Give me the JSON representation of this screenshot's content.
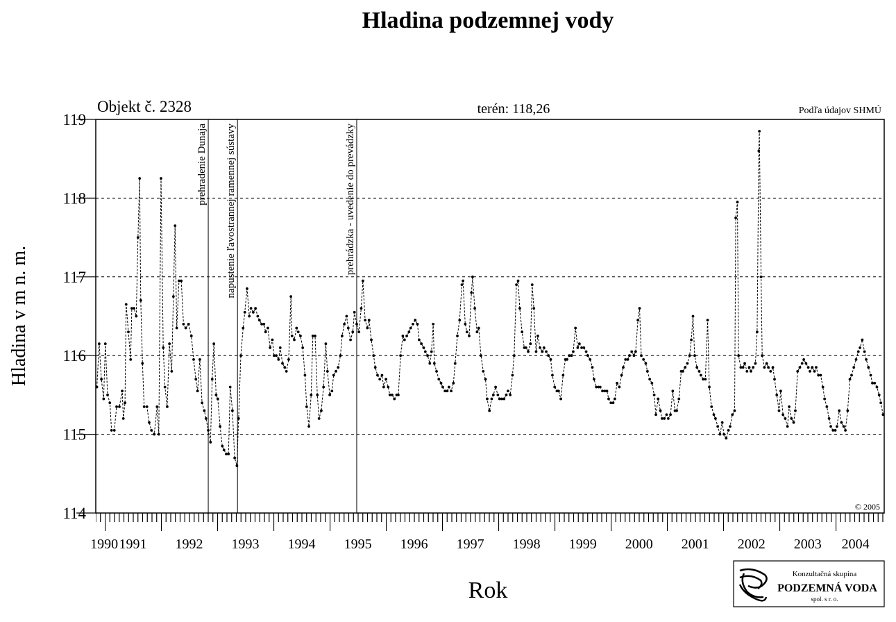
{
  "chart_data": {
    "type": "line",
    "title": "Hladina podzemnej vody",
    "object_label": "Objekt č. 2328",
    "terrain_label": "terén: 118,26",
    "source_label": "Podľa údajov SHMÚ",
    "copyright": "© 2005",
    "ylabel": "Hladina v m n. m.",
    "xlabel": "Rok",
    "logo": {
      "line1": "Konzultačná skupina",
      "line2": "PODZEMNÁ VODA",
      "line3": "spol. s r. o."
    },
    "xlim": [
      1990.84,
      2004.86
    ],
    "ylim": [
      114,
      119
    ],
    "yticks": [
      114,
      115,
      116,
      117,
      118,
      119
    ],
    "xticks": [
      {
        "value": 1990.99,
        "label": "1990"
      },
      {
        "value": 1991.5,
        "label": "1991"
      },
      {
        "value": 1992.5,
        "label": "1992"
      },
      {
        "value": 1993.5,
        "label": "1993"
      },
      {
        "value": 1994.5,
        "label": "1994"
      },
      {
        "value": 1995.5,
        "label": "1995"
      },
      {
        "value": 1996.5,
        "label": "1996"
      },
      {
        "value": 1997.5,
        "label": "1997"
      },
      {
        "value": 1998.5,
        "label": "1998"
      },
      {
        "value": 1999.5,
        "label": "1999"
      },
      {
        "value": 2000.5,
        "label": "2000"
      },
      {
        "value": 2001.5,
        "label": "2001"
      },
      {
        "value": 2002.5,
        "label": "2002"
      },
      {
        "value": 2003.5,
        "label": "2003"
      },
      {
        "value": 2004.35,
        "label": "2004"
      }
    ],
    "grid": true,
    "events": [
      {
        "x": 1992.84,
        "label": "prehradenie Dunaja"
      },
      {
        "x": 1993.36,
        "label": "napustenie ľavostrannej ramennej sústavy"
      },
      {
        "x": 1995.48,
        "label": "prehrádzka - uvedenie do prevádzky"
      }
    ],
    "series": [
      {
        "color": "#000000",
        "x": [
          1990.86,
          1990.9,
          1990.94,
          1990.98,
          1991.01,
          1991.05,
          1991.09,
          1991.12,
          1991.17,
          1991.21,
          1991.26,
          1991.31,
          1991.33,
          1991.36,
          1991.38,
          1991.42,
          1991.46,
          1991.48,
          1991.52,
          1991.56,
          1991.59,
          1991.62,
          1991.64,
          1991.67,
          1991.7,
          1991.75,
          1991.79,
          1991.83,
          1991.88,
          1991.93,
          1991.96,
          1992.0,
          1992.04,
          1992.07,
          1992.11,
          1992.15,
          1992.19,
          1992.22,
          1992.25,
          1992.28,
          1992.32,
          1992.36,
          1992.4,
          1992.44,
          1992.49,
          1992.54,
          1992.58,
          1992.62,
          1992.65,
          1992.69,
          1992.73,
          1992.77,
          1992.8,
          1992.84,
          1992.88,
          1992.91,
          1992.94,
          1992.98,
          1993.01,
          1993.05,
          1993.09,
          1993.12,
          1993.16,
          1993.2,
          1993.23,
          1993.27,
          1993.31,
          1993.35,
          1993.38,
          1993.42,
          1993.46,
          1993.49,
          1993.53,
          1993.57,
          1993.6,
          1993.64,
          1993.68,
          1993.72,
          1993.75,
          1993.79,
          1993.83,
          1993.86,
          1993.9,
          1993.94,
          1993.98,
          1994.01,
          1994.05,
          1994.09,
          1994.12,
          1994.16,
          1994.2,
          1994.23,
          1994.27,
          1994.31,
          1994.33,
          1994.37,
          1994.41,
          1994.44,
          1994.48,
          1994.52,
          1994.56,
          1994.59,
          1994.63,
          1994.67,
          1994.7,
          1994.74,
          1994.78,
          1994.81,
          1994.85,
          1994.89,
          1994.93,
          1994.96,
          1995.0,
          1995.04,
          1995.07,
          1995.11,
          1995.15,
          1995.19,
          1995.22,
          1995.26,
          1995.3,
          1995.33,
          1995.37,
          1995.41,
          1995.44,
          1995.48,
          1995.52,
          1995.56,
          1995.59,
          1995.63,
          1995.67,
          1995.7,
          1995.74,
          1995.78,
          1995.81,
          1995.85,
          1995.89,
          1995.93,
          1995.96,
          1996.0,
          1996.04,
          1996.07,
          1996.11,
          1996.15,
          1996.19,
          1996.22,
          1996.26,
          1996.3,
          1996.33,
          1996.37,
          1996.41,
          1996.44,
          1996.48,
          1996.52,
          1996.56,
          1996.59,
          1996.63,
          1996.67,
          1996.7,
          1996.74,
          1996.78,
          1996.81,
          1996.84,
          1996.86,
          1996.9,
          1996.94,
          1996.98,
          1997.01,
          1997.05,
          1997.09,
          1997.12,
          1997.16,
          1997.2,
          1997.23,
          1997.27,
          1997.31,
          1997.35,
          1997.37,
          1997.41,
          1997.44,
          1997.48,
          1997.52,
          1997.54,
          1997.58,
          1997.62,
          1997.65,
          1997.69,
          1997.73,
          1997.77,
          1997.8,
          1997.84,
          1997.88,
          1997.91,
          1997.95,
          1997.99,
          1998.02,
          1998.06,
          1998.1,
          1998.14,
          1998.17,
          1998.21,
          1998.25,
          1998.28,
          1998.32,
          1998.35,
          1998.38,
          1998.42,
          1998.46,
          1998.49,
          1998.53,
          1998.57,
          1998.6,
          1998.63,
          1998.67,
          1998.7,
          1998.74,
          1998.78,
          1998.81,
          1998.85,
          1998.89,
          1998.93,
          1998.96,
          1999.0,
          1999.04,
          1999.07,
          1999.11,
          1999.15,
          1999.19,
          1999.22,
          1999.26,
          1999.3,
          1999.33,
          1999.37,
          1999.41,
          1999.44,
          1999.48,
          1999.52,
          1999.56,
          1999.59,
          1999.63,
          1999.67,
          1999.7,
          1999.74,
          1999.78,
          1999.81,
          1999.85,
          1999.89,
          1999.93,
          1999.96,
          2000.0,
          2000.04,
          2000.07,
          2000.11,
          2000.15,
          2000.19,
          2000.22,
          2000.26,
          2000.3,
          2000.33,
          2000.37,
          2000.41,
          2000.44,
          2000.48,
          2000.51,
          2000.54,
          2000.58,
          2000.62,
          2000.65,
          2000.69,
          2000.73,
          2000.77,
          2000.8,
          2000.84,
          2000.88,
          2000.91,
          2000.95,
          2000.99,
          2001.02,
          2001.06,
          2001.1,
          2001.14,
          2001.17,
          2001.21,
          2001.25,
          2001.28,
          2001.32,
          2001.36,
          2001.4,
          2001.43,
          2001.46,
          2001.49,
          2001.53,
          2001.57,
          2001.6,
          2001.64,
          2001.68,
          2001.72,
          2001.75,
          2001.79,
          2001.83,
          2001.86,
          2001.9,
          2001.94,
          2001.98,
          2002.01,
          2002.05,
          2002.09,
          2002.12,
          2002.16,
          2002.2,
          2002.22,
          2002.25,
          2002.27,
          2002.31,
          2002.35,
          2002.38,
          2002.42,
          2002.46,
          2002.49,
          2002.53,
          2002.57,
          2002.6,
          2002.63,
          2002.64,
          2002.67,
          2002.69,
          2002.73,
          2002.77,
          2002.8,
          2002.84,
          2002.88,
          2002.91,
          2002.95,
          2002.99,
          2003.02,
          2003.06,
          2003.1,
          2003.14,
          2003.17,
          2003.21,
          2003.25,
          2003.28,
          2003.32,
          2003.36,
          2003.4,
          2003.43,
          2003.47,
          2003.51,
          2003.54,
          2003.58,
          2003.62,
          2003.65,
          2003.69,
          2003.73,
          2003.77,
          2003.8,
          2003.84,
          2003.88,
          2003.91,
          2003.95,
          2003.99,
          2004.02,
          2004.06,
          2004.1,
          2004.14,
          2004.17,
          2004.21,
          2004.25,
          2004.28,
          2004.32,
          2004.36,
          2004.4,
          2004.43,
          2004.47,
          2004.51,
          2004.54,
          2004.58,
          2004.62,
          2004.65,
          2004.69,
          2004.73,
          2004.77,
          2004.8,
          2004.84
        ],
        "values": [
          115.6,
          116.15,
          115.7,
          115.45,
          116.15,
          115.5,
          115.4,
          115.05,
          115.05,
          115.35,
          115.35,
          115.55,
          115.2,
          115.4,
          116.65,
          116.3,
          115.95,
          116.6,
          116.6,
          116.5,
          117.5,
          118.25,
          116.7,
          115.9,
          115.35,
          115.35,
          115.15,
          115.05,
          115.0,
          115.35,
          115.0,
          118.25,
          116.1,
          115.6,
          115.35,
          116.15,
          115.8,
          116.75,
          117.65,
          116.35,
          116.95,
          116.95,
          116.4,
          116.35,
          116.4,
          116.25,
          115.95,
          115.7,
          115.55,
          115.95,
          115.4,
          115.3,
          115.2,
          115.05,
          114.9,
          115.7,
          116.15,
          115.5,
          115.45,
          115.1,
          114.85,
          114.8,
          114.75,
          114.75,
          115.6,
          115.3,
          114.7,
          114.6,
          115.2,
          116.0,
          116.35,
          116.55,
          116.85,
          116.5,
          116.6,
          116.55,
          116.6,
          116.5,
          116.45,
          116.4,
          116.4,
          116.3,
          116.35,
          116.1,
          116.2,
          116.0,
          116.0,
          115.95,
          116.1,
          115.9,
          115.85,
          115.8,
          115.95,
          116.75,
          116.25,
          116.2,
          116.35,
          116.3,
          116.25,
          116.1,
          115.75,
          115.35,
          115.1,
          115.5,
          116.25,
          116.25,
          115.5,
          115.2,
          115.3,
          115.6,
          116.15,
          115.8,
          115.5,
          115.55,
          115.75,
          115.8,
          115.85,
          116.0,
          116.25,
          116.4,
          116.5,
          116.35,
          116.2,
          116.3,
          116.55,
          116.4,
          116.3,
          116.6,
          116.95,
          116.45,
          116.35,
          116.45,
          116.2,
          116.0,
          115.85,
          115.75,
          115.7,
          115.75,
          115.6,
          115.7,
          115.6,
          115.5,
          115.5,
          115.45,
          115.5,
          115.5,
          116.0,
          116.25,
          116.2,
          116.25,
          116.3,
          116.35,
          116.4,
          116.45,
          116.4,
          116.2,
          116.15,
          116.1,
          116.05,
          116.0,
          115.9,
          116.05,
          116.4,
          115.9,
          115.8,
          115.7,
          115.65,
          115.6,
          115.55,
          115.55,
          115.6,
          115.55,
          115.65,
          115.9,
          116.25,
          116.45,
          116.9,
          116.95,
          116.4,
          116.3,
          116.25,
          116.8,
          117.0,
          116.6,
          116.3,
          116.35,
          116.0,
          115.8,
          115.7,
          115.45,
          115.3,
          115.45,
          115.5,
          115.6,
          115.5,
          115.45,
          115.45,
          115.45,
          115.5,
          115.55,
          115.5,
          115.75,
          116.0,
          116.9,
          116.95,
          116.6,
          116.3,
          116.1,
          116.1,
          116.05,
          116.15,
          116.9,
          116.6,
          116.05,
          116.25,
          116.1,
          116.05,
          116.1,
          116.05,
          116.0,
          115.95,
          115.75,
          115.6,
          115.55,
          115.55,
          115.45,
          115.75,
          115.95,
          115.95,
          116.0,
          116.0,
          116.05,
          116.35,
          116.1,
          116.15,
          116.1,
          116.1,
          116.05,
          116.0,
          115.95,
          115.85,
          115.7,
          115.6,
          115.6,
          115.6,
          115.55,
          115.55,
          115.55,
          115.45,
          115.4,
          115.4,
          115.45,
          115.65,
          115.6,
          115.75,
          115.85,
          115.95,
          115.95,
          116.0,
          116.05,
          116.0,
          116.05,
          116.45,
          116.6,
          116.0,
          115.95,
          115.9,
          115.8,
          115.7,
          115.65,
          115.5,
          115.25,
          115.45,
          115.3,
          115.2,
          115.2,
          115.25,
          115.2,
          115.25,
          115.55,
          115.3,
          115.3,
          115.45,
          115.8,
          115.8,
          115.85,
          115.9,
          116.0,
          116.2,
          116.5,
          116.0,
          115.85,
          115.8,
          115.75,
          115.7,
          115.7,
          116.45,
          115.6,
          115.35,
          115.25,
          115.2,
          115.1,
          115.0,
          115.15,
          115.0,
          114.95,
          115.05,
          115.1,
          115.25,
          115.3,
          117.75,
          117.95,
          116.0,
          115.85,
          115.85,
          115.9,
          115.8,
          115.85,
          115.8,
          115.85,
          115.9,
          116.3,
          118.6,
          118.85,
          117.0,
          116.0,
          115.85,
          115.9,
          115.85,
          115.8,
          115.85,
          115.7,
          115.5,
          115.3,
          115.55,
          115.25,
          115.2,
          115.1,
          115.35,
          115.2,
          115.15,
          115.3,
          115.8,
          115.85,
          115.9,
          115.95,
          115.9,
          115.85,
          115.8,
          115.85,
          115.8,
          115.85,
          115.75,
          115.75,
          115.6,
          115.45,
          115.35,
          115.2,
          115.1,
          115.05,
          115.05,
          115.1,
          115.3,
          115.15,
          115.1,
          115.05,
          115.3,
          115.7,
          115.75,
          115.85,
          115.95,
          116.05,
          116.1,
          116.2,
          116.05,
          115.95,
          115.85,
          115.75,
          115.65,
          115.65,
          115.6,
          115.5,
          115.4,
          115.25
        ]
      }
    ]
  }
}
